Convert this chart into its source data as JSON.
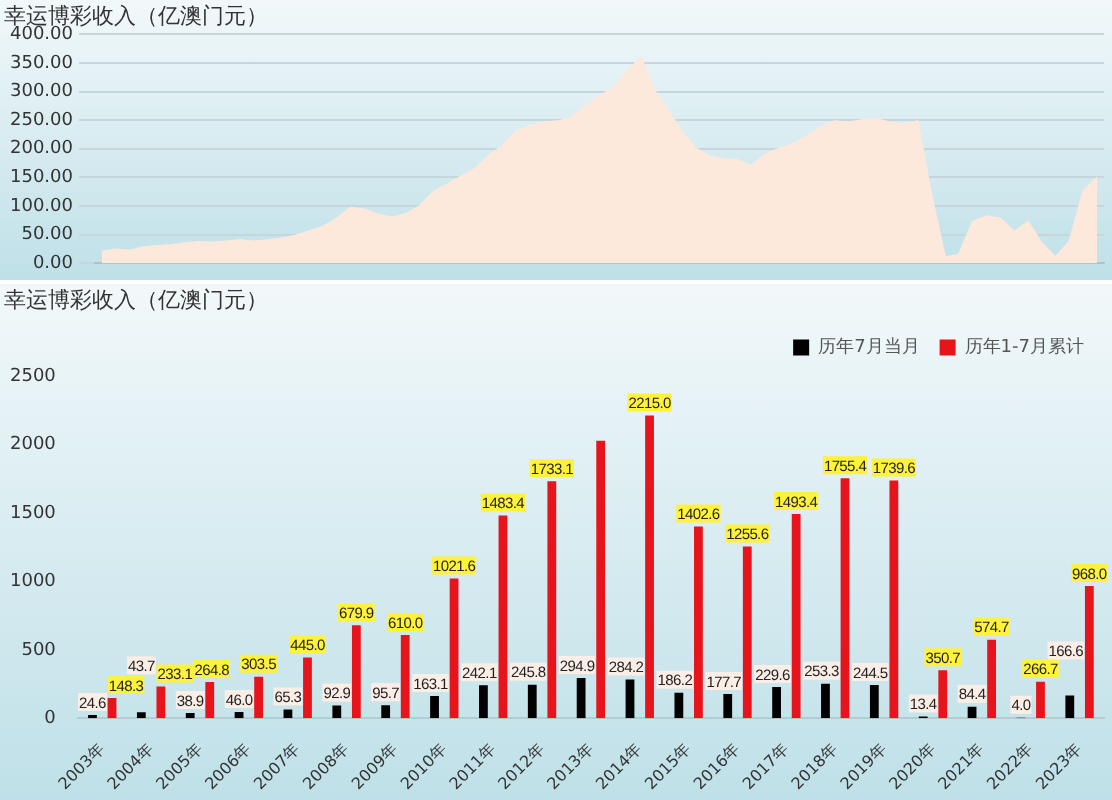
{
  "chart_data": [
    {
      "type": "area",
      "title": "幸运博彩收入（亿澳门元）",
      "categories": [
        null,
        null,
        null,
        null,
        null,
        null,
        null,
        null,
        null,
        null,
        null,
        null,
        null,
        null,
        null,
        null,
        null,
        null,
        null,
        null,
        null,
        null,
        null,
        null,
        null,
        null,
        null,
        null,
        null,
        null,
        null,
        null,
        null,
        null,
        null,
        null,
        null,
        null,
        null,
        null,
        null,
        null,
        null,
        null,
        null,
        null,
        null,
        null,
        null,
        null,
        null,
        null,
        null,
        null,
        null,
        null,
        null,
        null,
        null,
        null,
        null,
        null,
        null,
        null,
        null,
        null,
        null,
        null,
        null,
        null,
        null,
        null,
        null
      ],
      "values": [
        20,
        24,
        22,
        28,
        30,
        32,
        35,
        37,
        36,
        38,
        40,
        38,
        40,
        43,
        48,
        56,
        64,
        78,
        97,
        94,
        85,
        80,
        86,
        100,
        125,
        138,
        152,
        165,
        188,
        205,
        232,
        240,
        246,
        248,
        255,
        275,
        292,
        305,
        335,
        360,
        300,
        265,
        228,
        200,
        186,
        182,
        180,
        170,
        190,
        200,
        208,
        222,
        238,
        248,
        246,
        250,
        252,
        246,
        242,
        248,
        120,
        10,
        15,
        72,
        82,
        78,
        55,
        72,
        35,
        10,
        38,
        125,
        150
      ],
      "color": "#fde9dc",
      "ylim": [
        0,
        400
      ],
      "yticks": [
        {
          "value": 0,
          "label": "0.00"
        },
        {
          "value": 50,
          "label": "50.00"
        },
        {
          "value": 100,
          "label": "100.00"
        },
        {
          "value": 150,
          "label": "150.00"
        },
        {
          "value": 200,
          "label": "200.00"
        },
        {
          "value": 250,
          "label": "250.00"
        },
        {
          "value": 300,
          "label": "300.00"
        },
        {
          "value": 350,
          "label": "350.00"
        },
        {
          "value": 400,
          "label": "400.00"
        }
      ],
      "grid": "y",
      "tick_labels": "y"
    },
    {
      "type": "bar",
      "title": "幸运博彩收入（亿澳门元）",
      "categories": [
        "2003年",
        "2004年",
        "2005年",
        "2006年",
        "2007年",
        "2008年",
        "2009年",
        "2010年",
        "2011年",
        "2012年",
        "2013年",
        "2014年",
        "2015年",
        "2016年",
        "2017年",
        "2018年",
        "2019年",
        "2020年",
        "2021年",
        "2022年",
        "2023年"
      ],
      "series": [
        {
          "name": "历年7月当月",
          "color": "#000000",
          "values": [
            24.6,
            43.7,
            38.9,
            46.0,
            65.3,
            92.9,
            95.7,
            163.1,
            242.1,
            245.8,
            294.9,
            284.2,
            186.2,
            177.7,
            229.6,
            253.3,
            244.5,
            13.4,
            84.4,
            4.0,
            166.6
          ],
          "value_labels": [
            "24.6",
            "43.7",
            "38.9",
            "46.0",
            "65.3",
            "92.9",
            "95.7",
            "163.1",
            "242.1",
            "245.8",
            "294.9",
            "284.2",
            "186.2",
            "177.7",
            "229.6",
            "253.3",
            "244.5",
            "13.4",
            "84.4",
            "4.0",
            "166.6"
          ]
        },
        {
          "name": "历年1-7月累计",
          "color": "#e8141b",
          "values": [
            148.3,
            233.1,
            264.8,
            303.5,
            445.0,
            679.9,
            610.0,
            1021.6,
            1483.4,
            1733.1,
            2030,
            2215.0,
            1402.6,
            1255.6,
            1493.4,
            1755.4,
            1739.6,
            350.7,
            574.7,
            266.7,
            968.0
          ],
          "value_labels": [
            "148.3",
            "233.1",
            "264.8",
            "303.5",
            "445.0",
            "679.9",
            "610.0",
            "1021.6",
            "1483.4",
            "1733.1",
            null,
            "2215.0",
            "1402.6",
            "1255.6",
            "1493.4",
            "1755.4",
            "1739.6",
            "350.7",
            "574.7",
            "266.7",
            "968.0"
          ]
        }
      ],
      "ylim": [
        0,
        2500
      ],
      "yticks": [
        0,
        500,
        1000,
        1500,
        2000,
        2500
      ],
      "legend": "top right"
    }
  ]
}
